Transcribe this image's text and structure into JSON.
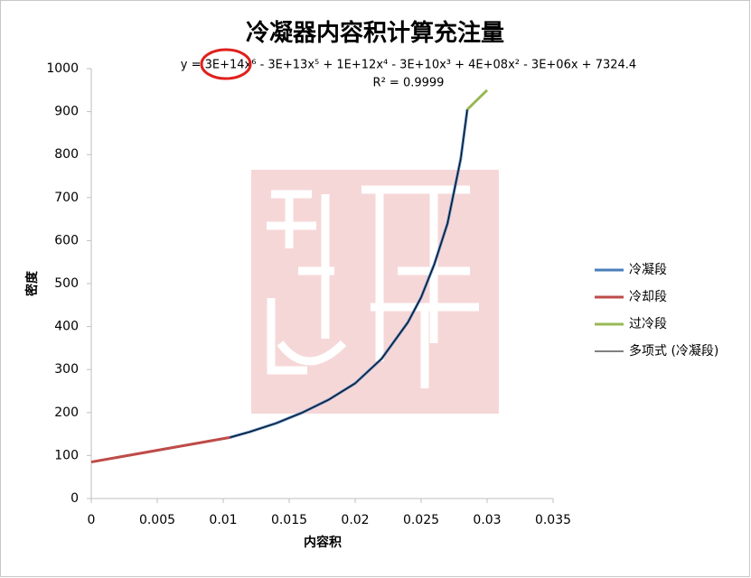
{
  "chart_data": {
    "type": "line",
    "title": "冷凝器内容积计算充注量",
    "equation": "y = 3E+14x⁶ - 3E+13x⁵ + 1E+12x⁴ - 3E+10x³ + 4E+08x² - 3E+06x + 7324.4",
    "r_squared": "R² = 0.9999",
    "x_label": "内容积",
    "y_label": "密度",
    "xlim": [
      0,
      0.035
    ],
    "xticks": [
      0,
      0.005,
      0.01,
      0.015,
      0.02,
      0.025,
      0.03,
      0.035
    ],
    "ylim": [
      0,
      1000
    ],
    "yticks": [
      0,
      100,
      200,
      300,
      400,
      500,
      600,
      700,
      800,
      900,
      1000
    ],
    "grid": false,
    "legend": "right",
    "series": [
      {
        "name": "冷凝段",
        "color": "#4a7ebb",
        "width": 3,
        "x": [
          0.0105,
          0.012,
          0.014,
          0.016,
          0.018,
          0.02,
          0.022,
          0.024,
          0.025,
          0.026,
          0.027,
          0.028,
          0.0285
        ],
        "values": [
          142,
          155,
          175,
          200,
          230,
          268,
          325,
          410,
          468,
          545,
          640,
          790,
          905
        ]
      },
      {
        "name": "冷却段",
        "color": "#be4b48",
        "width": 3,
        "x": [
          0,
          0.0105
        ],
        "values": [
          85,
          142
        ]
      },
      {
        "name": "过冷段",
        "color": "#98b954",
        "width": 3,
        "x": [
          0.0285,
          0.03
        ],
        "values": [
          905,
          950
        ]
      },
      {
        "name": "多项式 (冷凝段)",
        "color": "#000000",
        "width": 1,
        "x": [
          0.0105,
          0.012,
          0.014,
          0.016,
          0.018,
          0.02,
          0.022,
          0.024,
          0.025,
          0.026,
          0.027,
          0.028,
          0.0285
        ],
        "values": [
          142,
          155,
          175,
          200,
          230,
          268,
          325,
          410,
          468,
          545,
          640,
          790,
          905
        ]
      }
    ]
  }
}
